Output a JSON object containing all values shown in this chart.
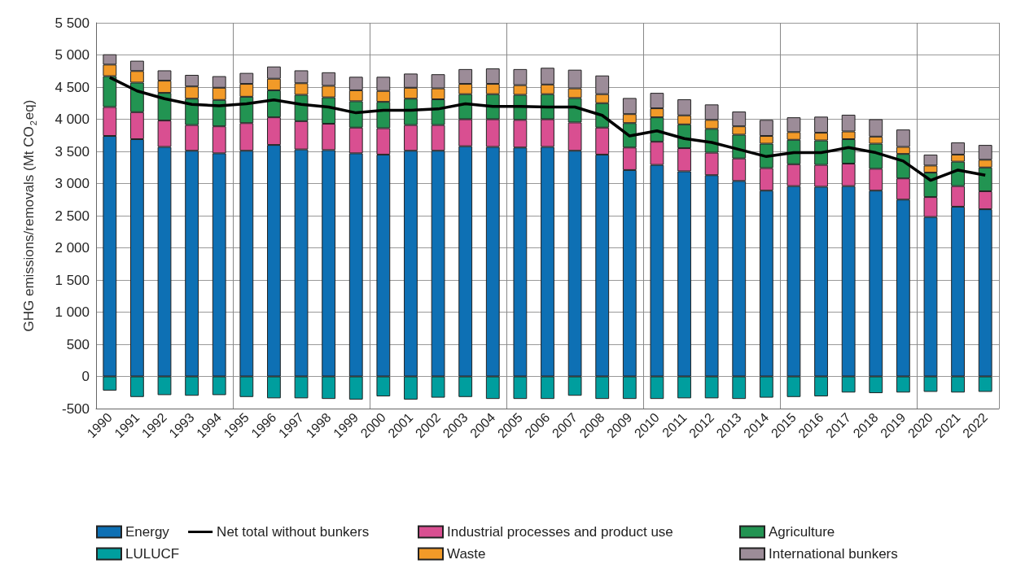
{
  "chart_data": {
    "type": "bar",
    "stacked": true,
    "ylabel": "GHG emissions/removals (Mt CO$_{2}$eq)",
    "categories": [
      "1990",
      "1991",
      "1992",
      "1993",
      "1994",
      "1995",
      "1996",
      "1997",
      "1998",
      "1999",
      "2000",
      "2001",
      "2002",
      "2003",
      "2004",
      "2005",
      "2006",
      "2007",
      "2008",
      "2009",
      "2010",
      "2011",
      "2012",
      "2013",
      "2014",
      "2015",
      "2016",
      "2017",
      "2018",
      "2019",
      "2020",
      "2021",
      "2022"
    ],
    "series": [
      {
        "name": "Energy",
        "color": "#0e70b4",
        "values": [
          3740,
          3690,
          3570,
          3510,
          3470,
          3510,
          3600,
          3530,
          3520,
          3470,
          3450,
          3510,
          3510,
          3580,
          3570,
          3560,
          3570,
          3510,
          3450,
          3210,
          3290,
          3190,
          3130,
          3040,
          2890,
          2960,
          2950,
          2960,
          2890,
          2750,
          2480,
          2640,
          2600
        ]
      },
      {
        "name": "Industrial processes and product use",
        "color": "#d94f91",
        "values": [
          450,
          420,
          410,
          400,
          420,
          430,
          430,
          440,
          410,
          400,
          410,
          400,
          400,
          420,
          430,
          430,
          430,
          440,
          420,
          350,
          360,
          360,
          350,
          350,
          350,
          340,
          340,
          350,
          340,
          330,
          310,
          320,
          280
        ]
      },
      {
        "name": "Agriculture",
        "color": "#229452",
        "values": [
          480,
          460,
          430,
          410,
          410,
          410,
          420,
          410,
          410,
          410,
          410,
          410,
          400,
          390,
          390,
          390,
          390,
          380,
          380,
          380,
          380,
          370,
          370,
          370,
          380,
          380,
          380,
          380,
          390,
          380,
          380,
          380,
          370
        ]
      },
      {
        "name": "LULUCF",
        "color": "#009e9e",
        "values": [
          -220,
          -320,
          -290,
          -300,
          -290,
          -320,
          -340,
          -340,
          -350,
          -360,
          -310,
          -360,
          -330,
          -320,
          -350,
          -350,
          -350,
          -300,
          -350,
          -350,
          -350,
          -340,
          -340,
          -350,
          -330,
          -320,
          -310,
          -250,
          -260,
          -250,
          -240,
          -250,
          -240
        ]
      },
      {
        "name": "Waste",
        "color": "#f29a28",
        "values": [
          180,
          180,
          190,
          190,
          190,
          200,
          180,
          180,
          180,
          170,
          170,
          170,
          170,
          160,
          160,
          150,
          150,
          150,
          140,
          140,
          140,
          140,
          140,
          130,
          120,
          120,
          120,
          120,
          110,
          110,
          110,
          110,
          120
        ]
      },
      {
        "name": "International bunkers",
        "color": "#9c8c98",
        "values": [
          160,
          160,
          160,
          180,
          180,
          170,
          190,
          200,
          210,
          210,
          220,
          220,
          220,
          230,
          240,
          250,
          260,
          290,
          290,
          250,
          240,
          250,
          240,
          230,
          250,
          230,
          250,
          260,
          270,
          270,
          170,
          190,
          230
        ]
      },
      {
        "name": "Net total without bunkers",
        "type": "line",
        "color": "#000000",
        "marker": "none",
        "values": [
          4650,
          4440,
          4320,
          4230,
          4210,
          4240,
          4300,
          4230,
          4190,
          4100,
          4140,
          4140,
          4160,
          4240,
          4200,
          4200,
          4190,
          4190,
          4060,
          3740,
          3820,
          3700,
          3640,
          3530,
          3420,
          3480,
          3480,
          3560,
          3480,
          3350,
          3050,
          3210,
          3130
        ]
      }
    ],
    "ylim": [
      -500,
      5500
    ],
    "yticks": [
      -500,
      0,
      500,
      {
        "value": 1000,
        "label": "1 000"
      },
      {
        "value": 1500,
        "label": "1 500"
      },
      {
        "value": 2000,
        "label": "2 000"
      },
      {
        "value": 2500,
        "label": "2 500"
      },
      {
        "value": 3000,
        "label": "3 000"
      },
      {
        "value": 3500,
        "label": "3 500"
      },
      {
        "value": 4000,
        "label": "4 000"
      },
      {
        "value": 4500,
        "label": "4 500"
      },
      {
        "value": 5000,
        "label": "5 000"
      },
      {
        "value": 5500,
        "label": "5 500"
      }
    ],
    "grid": true,
    "legend": "bottom"
  }
}
